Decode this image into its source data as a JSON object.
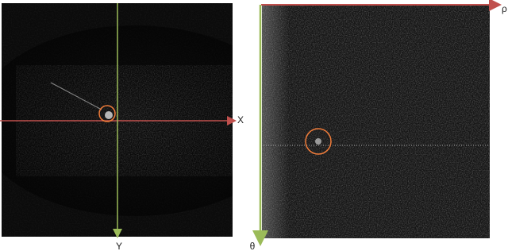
{
  "panels": [
    {
      "x_axis_label": "X",
      "y_axis_label": "Y"
    },
    {
      "x_axis_label": "ρ",
      "y_axis_label": "θ"
    }
  ]
}
